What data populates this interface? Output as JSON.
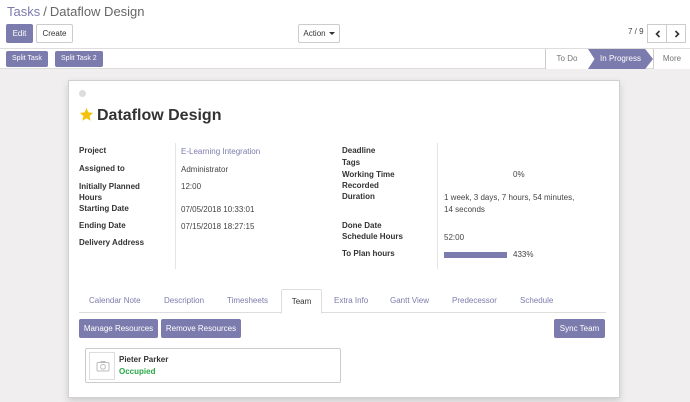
{
  "breadcrumb": {
    "parent": "Tasks",
    "separator": "/",
    "current": "Dataflow Design"
  },
  "buttons": {
    "edit": "Edit",
    "create": "Create",
    "action": "Action"
  },
  "pager": {
    "text": "7 / 9"
  },
  "header": {
    "split_task": "Split Task",
    "split_task_2": "Split Task 2",
    "stages": [
      "To Do",
      "In Progress",
      "More"
    ],
    "active_stage": "In Progress"
  },
  "task": {
    "title": "Dataflow Design",
    "starred": true,
    "fields_left": [
      {
        "label": "Project",
        "value": "E-Learning Integration",
        "is_link": true
      },
      {
        "label": "Assigned to",
        "value": "Administrator"
      },
      {
        "label": "Initially Planned Hours",
        "value": "12:00"
      },
      {
        "label": "Starting Date",
        "value": "07/05/2018 10:33:01"
      },
      {
        "label": "Ending Date",
        "value": "07/15/2018 18:27:15"
      },
      {
        "label": "Delivery Address",
        "value": ""
      }
    ],
    "fields_right": {
      "deadline": {
        "label": "Deadline",
        "value": ""
      },
      "tags": {
        "label": "Tags",
        "value": ""
      },
      "working_time": {
        "label": "Working Time",
        "value": "0%"
      },
      "recorded": {
        "label": "Recorded",
        "value": ""
      },
      "duration": {
        "label": "Duration",
        "value_line1": "1 week, 3 days, 7 hours, 54 minutes,",
        "value_line2": "14 seconds"
      },
      "done_date": {
        "label": "Done Date",
        "value": ""
      },
      "schedule_hours": {
        "label": "Schedule Hours",
        "value": "52:00"
      },
      "to_plan_hours": {
        "label": "To Plan hours",
        "value": "433%",
        "progress": 4.33
      }
    }
  },
  "tabs": [
    "Calendar Note",
    "Description",
    "Timesheets",
    "Team",
    "Extra Info",
    "Gantt View",
    "Predecessor",
    "Schedule"
  ],
  "active_tab": "Team",
  "team": {
    "manage_resources": "Manage Resources",
    "remove_resources": "Remove Resources",
    "sync_team": "Sync Team",
    "members": [
      {
        "name": "Pieter Parker",
        "status": "Occupied"
      }
    ]
  },
  "colors": {
    "brand": "#7c7bad",
    "status_ok": "#28a745",
    "star": "#f4c20d"
  }
}
